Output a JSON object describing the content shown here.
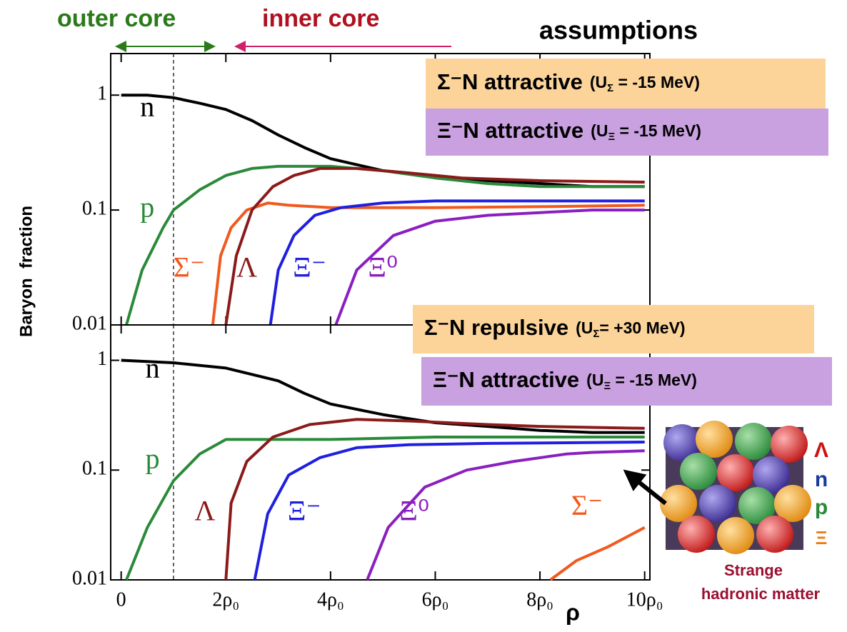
{
  "header": {
    "outer_core": "outer core",
    "inner_core": "inner core",
    "assumptions": "assumptions"
  },
  "y_label": "Baryon  fraction",
  "inset": {
    "labels": [
      "Λ",
      "n",
      "p",
      "Ξ"
    ],
    "caption": [
      "Strange",
      "hadronic matter"
    ]
  },
  "chart_data": [
    {
      "type": "line",
      "log_y": true,
      "xlim": [
        -0.2,
        10.1
      ],
      "ylim": [
        0.01,
        2.3
      ],
      "xticks": [
        0,
        2,
        4,
        6,
        8,
        10
      ],
      "yticks": [
        1,
        0.1,
        0.01
      ],
      "reference_line_x": 1,
      "annotations": [
        {
          "text": "Σ⁻N attractive",
          "detail": [
            "(U",
            "Σ",
            " = -15 MeV)"
          ]
        },
        {
          "text": "Ξ⁻N attractive",
          "detail": [
            "(U",
            "Ξ",
            " = -15 MeV)"
          ]
        }
      ],
      "series": [
        {
          "name": "n",
          "color": "#000000",
          "x": [
            0,
            0.5,
            1,
            1.5,
            2,
            2.5,
            3,
            3.5,
            4,
            5,
            6,
            7,
            8,
            9,
            10
          ],
          "values": [
            1,
            1,
            0.95,
            0.85,
            0.75,
            0.6,
            0.45,
            0.35,
            0.28,
            0.22,
            0.2,
            0.18,
            0.17,
            0.16,
            0.16
          ]
        },
        {
          "name": "p",
          "color": "#2a8a3a",
          "x": [
            0.1,
            0.4,
            0.8,
            1,
            1.5,
            2,
            2.5,
            3,
            4,
            5,
            6,
            7,
            8,
            10
          ],
          "values": [
            0.01,
            0.03,
            0.07,
            0.1,
            0.15,
            0.2,
            0.23,
            0.24,
            0.24,
            0.22,
            0.19,
            0.17,
            0.16,
            0.16
          ]
        },
        {
          "name": "Σ⁻",
          "color": "#f05a1e",
          "x": [
            1.75,
            1.9,
            2.1,
            2.4,
            2.8,
            3.2,
            4,
            6,
            8,
            10
          ],
          "values": [
            0.01,
            0.04,
            0.07,
            0.1,
            0.115,
            0.11,
            0.105,
            0.105,
            0.107,
            0.11
          ]
        },
        {
          "name": "Λ",
          "color": "#8b1a1a",
          "x": [
            2,
            2.2,
            2.5,
            2.9,
            3.3,
            3.8,
            4.5,
            5.5,
            6.5,
            8,
            10
          ],
          "values": [
            0.01,
            0.04,
            0.1,
            0.16,
            0.2,
            0.23,
            0.23,
            0.21,
            0.19,
            0.18,
            0.175
          ]
        },
        {
          "name": "Ξ⁻",
          "color": "#1f1fe0",
          "x": [
            2.85,
            3,
            3.3,
            3.7,
            4.2,
            5,
            6,
            8,
            10
          ],
          "values": [
            0.01,
            0.03,
            0.06,
            0.09,
            0.105,
            0.115,
            0.12,
            0.12,
            0.12
          ]
        },
        {
          "name": "Ξ⁰",
          "color": "#8a1fc0",
          "x": [
            4.1,
            4.5,
            5.2,
            6,
            7,
            8,
            9,
            10
          ],
          "values": [
            0.01,
            0.03,
            0.06,
            0.08,
            0.09,
            0.095,
            0.1,
            0.1
          ]
        }
      ]
    },
    {
      "type": "line",
      "log_y": true,
      "xlim": [
        -0.2,
        10.1
      ],
      "ylim": [
        0.01,
        2.1
      ],
      "xlabel": "ρ",
      "xticks": [
        0,
        {
          "value": 2,
          "label": "2ρ₀"
        },
        {
          "value": 4,
          "label": "4ρ₀"
        },
        {
          "value": 6,
          "label": "6ρ₀"
        },
        {
          "value": 8,
          "label": "8ρ₀"
        },
        {
          "value": 10,
          "label": "10ρ₀"
        }
      ],
      "yticks": [
        1,
        0.1,
        0.01
      ],
      "reference_line_x": 1,
      "annotations": [
        {
          "text": "Σ⁻N repulsive",
          "detail": [
            "(U",
            "Σ",
            "= +30 MeV)"
          ]
        },
        {
          "text": "Ξ⁻N attractive",
          "detail": [
            "(U",
            "Ξ",
            " = -15 MeV)"
          ]
        }
      ],
      "series": [
        {
          "name": "n",
          "color": "#000000",
          "x": [
            0,
            1,
            2,
            3,
            3.5,
            4,
            5,
            6,
            7,
            8,
            9,
            10
          ],
          "values": [
            1,
            0.95,
            0.85,
            0.65,
            0.5,
            0.4,
            0.32,
            0.27,
            0.25,
            0.23,
            0.22,
            0.22
          ]
        },
        {
          "name": "p",
          "color": "#2a8a3a",
          "x": [
            0.1,
            0.5,
            1,
            1.5,
            2,
            3,
            4,
            6,
            8,
            10
          ],
          "values": [
            0.01,
            0.03,
            0.08,
            0.14,
            0.19,
            0.19,
            0.19,
            0.2,
            0.2,
            0.2
          ]
        },
        {
          "name": "Λ",
          "color": "#8b1a1a",
          "x": [
            2,
            2.1,
            2.4,
            2.9,
            3.6,
            4.5,
            5.5,
            7,
            8,
            10
          ],
          "values": [
            0.01,
            0.05,
            0.12,
            0.2,
            0.26,
            0.29,
            0.28,
            0.26,
            0.25,
            0.24
          ]
        },
        {
          "name": "Ξ⁻",
          "color": "#1f1fe0",
          "x": [
            2.55,
            2.8,
            3.2,
            3.8,
            4.5,
            5.5,
            7,
            10
          ],
          "values": [
            0.01,
            0.04,
            0.09,
            0.13,
            0.16,
            0.17,
            0.175,
            0.18
          ]
        },
        {
          "name": "Ξ⁰",
          "color": "#8a1fc0",
          "x": [
            4.7,
            5.1,
            5.8,
            6.6,
            7.5,
            8.5,
            9,
            10
          ],
          "values": [
            0.01,
            0.03,
            0.07,
            0.1,
            0.12,
            0.14,
            0.145,
            0.15
          ]
        },
        {
          "name": "Σ⁻",
          "color": "#f05a1e",
          "x": [
            8.2,
            8.7,
            9.3,
            10
          ],
          "values": [
            0.01,
            0.015,
            0.02,
            0.03
          ]
        }
      ]
    }
  ]
}
